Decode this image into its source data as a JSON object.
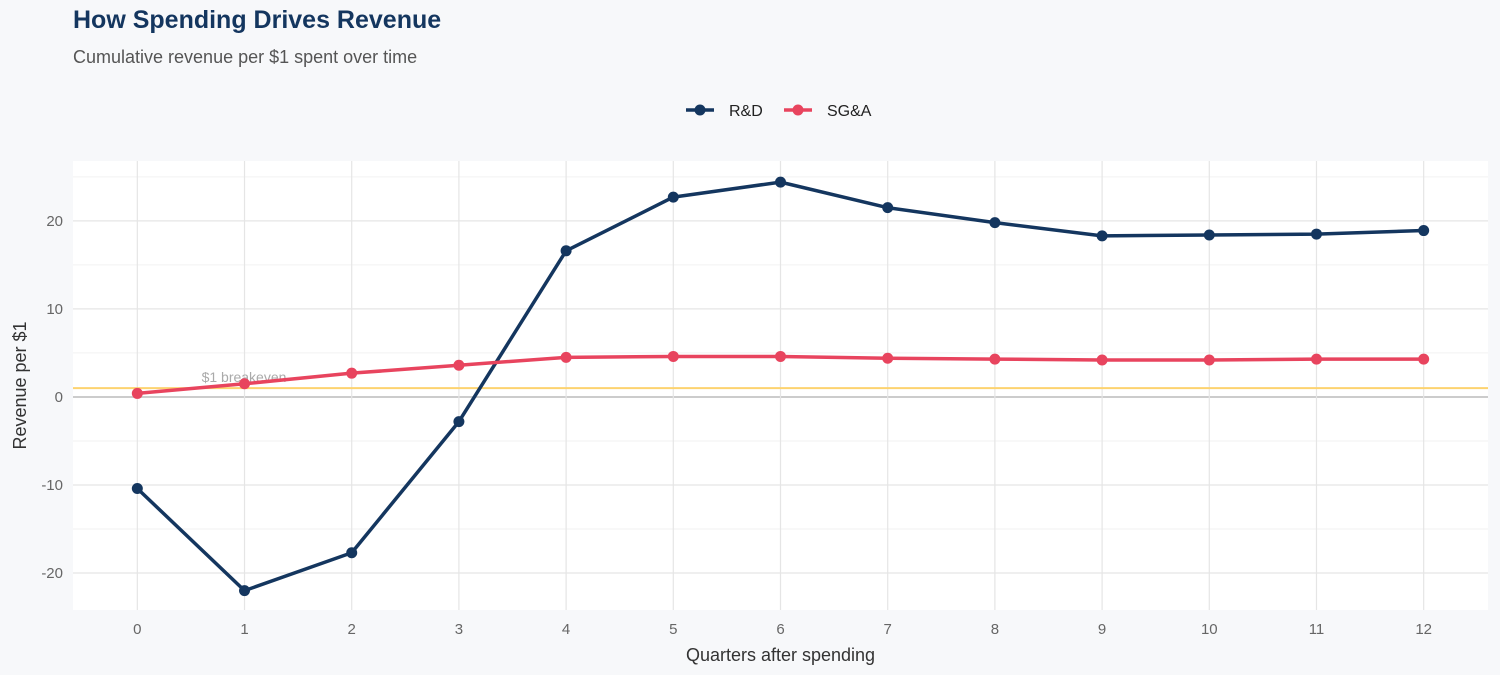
{
  "title": "How Spending Drives Revenue",
  "subtitle": "Cumulative revenue per $1 spent over time",
  "chart_data": {
    "type": "line",
    "xlabel": "Quarters after spending",
    "ylabel": "Revenue per $1",
    "x": [
      0,
      1,
      2,
      3,
      4,
      5,
      6,
      7,
      8,
      9,
      10,
      11,
      12
    ],
    "xlim": [
      -0.6,
      12.6
    ],
    "ylim": [
      -24.2,
      26.8
    ],
    "yticks": [
      -20,
      -10,
      0,
      10,
      20
    ],
    "grid": true,
    "legend_position": "top",
    "series": [
      {
        "name": "R&D",
        "color": "#14365f",
        "values": [
          -10.4,
          -22.0,
          -17.7,
          -2.8,
          16.6,
          22.7,
          24.4,
          21.5,
          19.8,
          18.3,
          18.4,
          18.5,
          18.9
        ]
      },
      {
        "name": "SG&A",
        "color": "#e8445e",
        "values": [
          0.4,
          1.5,
          2.7,
          3.6,
          4.5,
          4.6,
          4.6,
          4.4,
          4.3,
          4.2,
          4.2,
          4.3,
          4.3
        ]
      }
    ],
    "annotations": [
      {
        "text": "$1 breakeven",
        "y": 1,
        "color": "#fdd36f"
      }
    ]
  }
}
